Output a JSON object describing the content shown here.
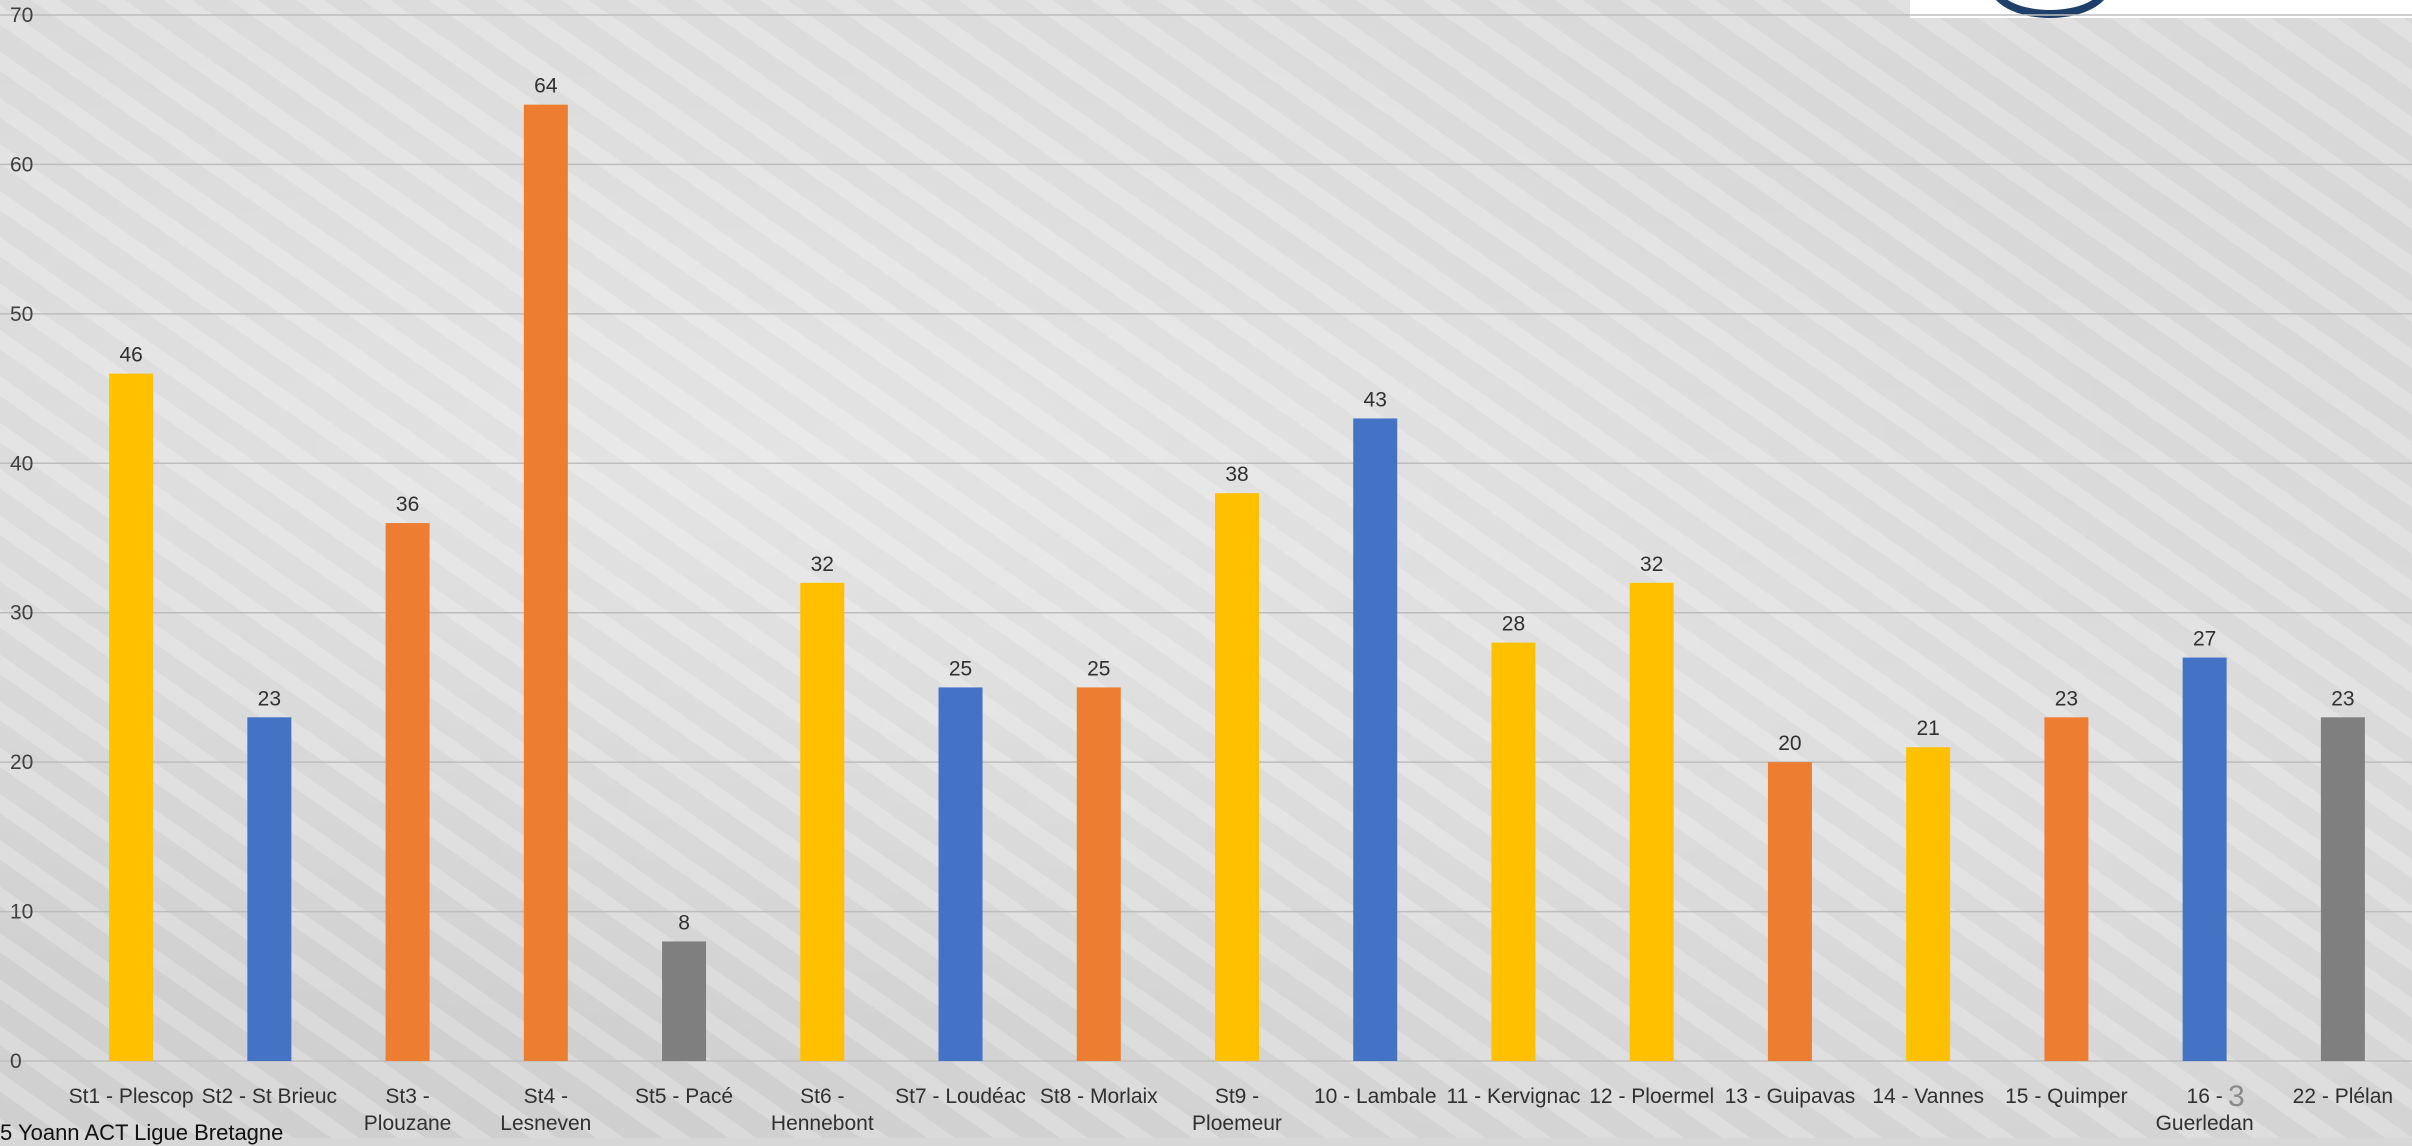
{
  "chart_data": {
    "type": "bar",
    "categories": [
      [
        "St1 - Plescop"
      ],
      [
        "St2 - St Brieuc"
      ],
      [
        "St3 -",
        "Plouzane"
      ],
      [
        "St4 -",
        "Lesneven"
      ],
      [
        "St5 - Pacé"
      ],
      [
        "St6 -",
        "Hennebont"
      ],
      [
        "St7 - Loudéac"
      ],
      [
        "St8 - Morlaix"
      ],
      [
        "St9 -",
        "Ploemeur"
      ],
      [
        "10 - Lambale"
      ],
      [
        "11 - Kervignac"
      ],
      [
        "12 - Ploermel"
      ],
      [
        "13 - Guipavas"
      ],
      [
        "14 - Vannes"
      ],
      [
        "15 - Quimper"
      ],
      [
        "16 -",
        "Guerledan"
      ],
      [
        "22 - Plélan"
      ]
    ],
    "values": [
      46,
      23,
      36,
      64,
      8,
      32,
      25,
      25,
      38,
      43,
      28,
      32,
      20,
      21,
      23,
      27,
      23
    ],
    "bar_colors": [
      "#FFC000",
      "#4472C4",
      "#ED7D31",
      "#ED7D31",
      "#7F7F7F",
      "#FFC000",
      "#4472C4",
      "#ED7D31",
      "#FFC000",
      "#4472C4",
      "#FFC000",
      "#FFC000",
      "#ED7D31",
      "#FFC000",
      "#ED7D31",
      "#4472C4",
      "#7F7F7F"
    ],
    "yticks": [
      0,
      10,
      20,
      30,
      40,
      50,
      60,
      70
    ],
    "ylim": [
      0,
      70
    ],
    "grid": true,
    "legend": "none"
  },
  "footer": {
    "author": "5 Yoann ACT Ligue Bretagne",
    "page_number": "3"
  }
}
